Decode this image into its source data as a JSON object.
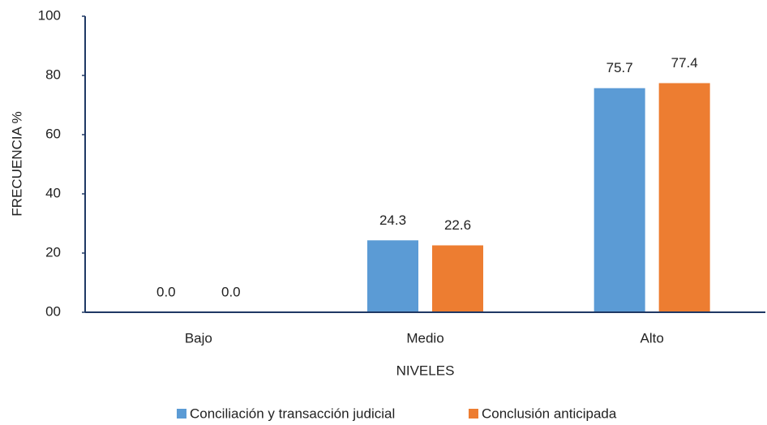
{
  "chart_data": {
    "type": "bar",
    "categories": [
      "Bajo",
      "Medio",
      "Alto"
    ],
    "series": [
      {
        "name": "Conciliación y transacción judicial",
        "color": "#5b9bd5",
        "values": [
          0,
          24.3,
          75.7
        ],
        "value_labels": [
          "0.0",
          "24.3",
          "75.7"
        ]
      },
      {
        "name": "Conclusión anticipada",
        "color": "#ed7d31",
        "values": [
          0,
          22.6,
          77.4
        ],
        "value_labels": [
          "0.0",
          "22.6",
          "77.4"
        ]
      }
    ],
    "xlabel": "NIVELES",
    "ylabel": "FRECUENCIA %",
    "ylim": [
      0,
      100
    ],
    "yticks": [
      {
        "value": 0,
        "label": "00"
      },
      20,
      40,
      60,
      80,
      100
    ],
    "grid": false,
    "legend": "bottom"
  }
}
